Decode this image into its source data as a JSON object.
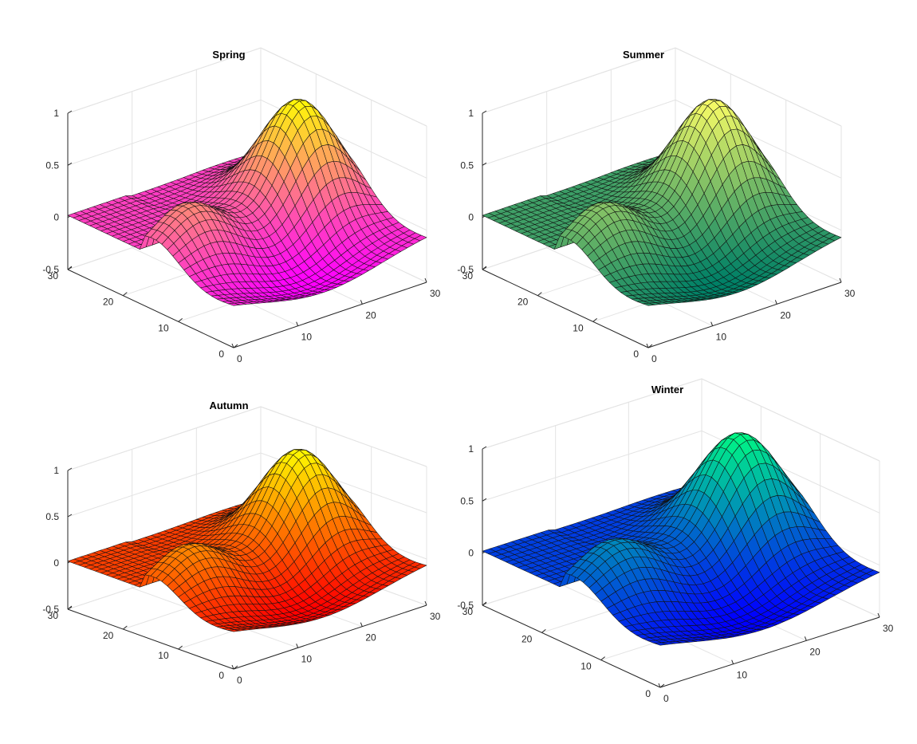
{
  "figure": {
    "background": "#ffffff"
  },
  "chart_data": [
    {
      "type": "surface",
      "title": "Spring",
      "colormap": "spring",
      "colormap_colors": [
        "#ff00ff",
        "#ffff00"
      ],
      "x_ticks": [
        "0",
        "10",
        "20",
        "30"
      ],
      "y_ticks": [
        "0",
        "10",
        "20",
        "30"
      ],
      "z_ticks": [
        "-0.5",
        "0",
        "0.5",
        "1"
      ],
      "xlim": [
        0,
        30
      ],
      "ylim": [
        0,
        30
      ],
      "zlim": [
        -0.5,
        1
      ],
      "grid": true,
      "mesh_size": [
        30,
        30
      ],
      "surface_peak_z": 1,
      "surface_min_z": -0.3
    },
    {
      "type": "surface",
      "title": "Summer",
      "colormap": "summer",
      "colormap_colors": [
        "#008066",
        "#ffff66"
      ],
      "x_ticks": [
        "0",
        "10",
        "20",
        "30"
      ],
      "y_ticks": [
        "0",
        "10",
        "20",
        "30"
      ],
      "z_ticks": [
        "-0.5",
        "0",
        "0.5",
        "1"
      ],
      "xlim": [
        0,
        30
      ],
      "ylim": [
        0,
        30
      ],
      "zlim": [
        -0.5,
        1
      ],
      "grid": true,
      "mesh_size": [
        30,
        30
      ],
      "surface_peak_z": 1,
      "surface_min_z": -0.3
    },
    {
      "type": "surface",
      "title": "Autumn",
      "colormap": "autumn",
      "colormap_colors": [
        "#ff0000",
        "#ffff00"
      ],
      "x_ticks": [
        "0",
        "10",
        "20",
        "30"
      ],
      "y_ticks": [
        "0",
        "10",
        "20",
        "30"
      ],
      "z_ticks": [
        "-0.5",
        "0",
        "0.5",
        "1"
      ],
      "xlim": [
        0,
        30
      ],
      "ylim": [
        0,
        30
      ],
      "zlim": [
        -0.5,
        1
      ],
      "grid": true,
      "mesh_size": [
        30,
        30
      ],
      "surface_peak_z": 1,
      "surface_min_z": -0.3
    },
    {
      "type": "surface",
      "title": "Winter",
      "colormap": "winter",
      "colormap_colors": [
        "#0000ff",
        "#00ff80"
      ],
      "x_ticks": [
        "0",
        "10",
        "20",
        "30"
      ],
      "y_ticks": [
        "0",
        "10",
        "20",
        "30"
      ],
      "z_ticks": [
        "-0.5",
        "0",
        "0.5",
        "1"
      ],
      "xlim": [
        0,
        30
      ],
      "ylim": [
        0,
        30
      ],
      "zlim": [
        -0.5,
        1
      ],
      "grid": true,
      "mesh_size": [
        30,
        30
      ],
      "surface_peak_z": 1,
      "surface_min_z": -0.3
    }
  ]
}
